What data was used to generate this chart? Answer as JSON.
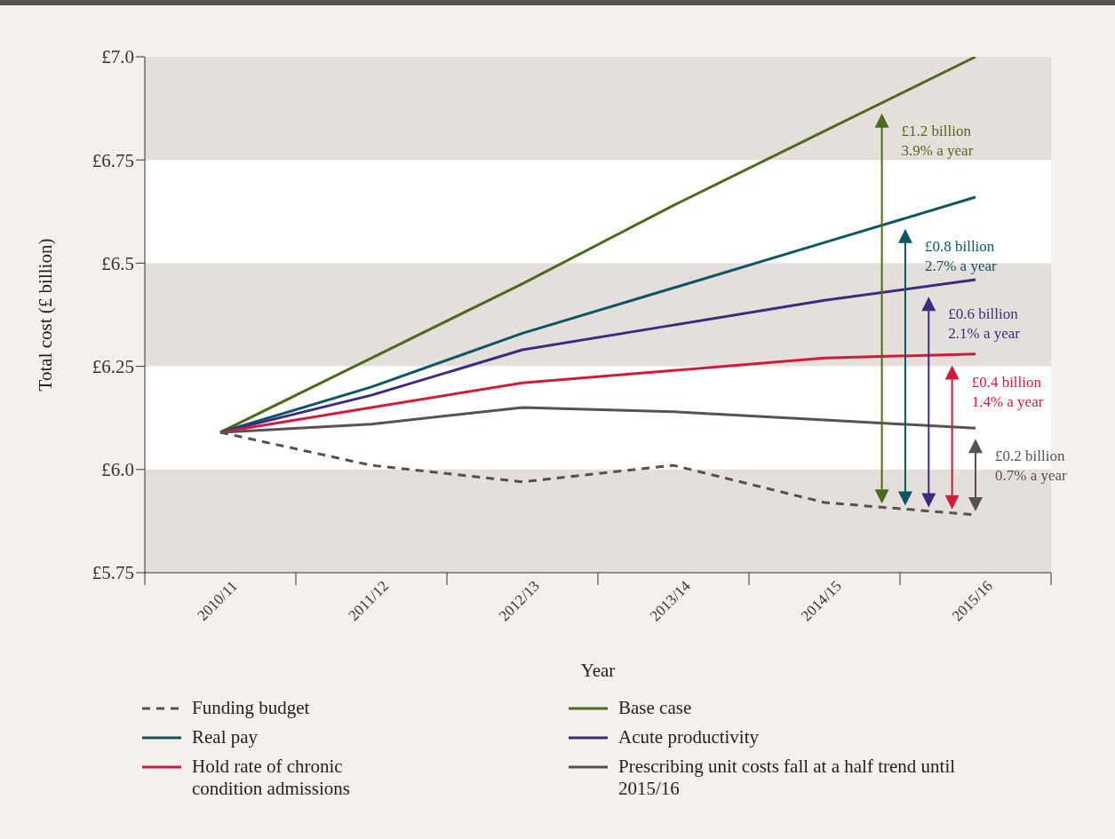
{
  "chart_data": {
    "type": "line",
    "xlabel": "Year",
    "ylabel": "Total cost (£ billion)",
    "categories": [
      "2010/11",
      "2011/12",
      "2012/13",
      "2013/14",
      "2014/15",
      "2015/16"
    ],
    "series": [
      {
        "name": "Funding budget",
        "color": "#58504f",
        "line_style": "dashed",
        "values": [
          6.09,
          6.01,
          5.97,
          6.01,
          5.92,
          5.89
        ]
      },
      {
        "name": "Base case",
        "color": "#4e6a1a",
        "values": [
          6.09,
          6.27,
          6.45,
          6.64,
          6.82,
          7.0
        ]
      },
      {
        "name": "Real pay",
        "color": "#0d5563",
        "values": [
          6.09,
          6.2,
          6.33,
          6.44,
          6.55,
          6.66
        ]
      },
      {
        "name": "Acute productivity",
        "color": "#3f2a7f",
        "values": [
          6.09,
          6.18,
          6.29,
          6.35,
          6.41,
          6.46
        ]
      },
      {
        "name": "Hold rate of chronic condition admissions",
        "color": "#d01c3b",
        "values": [
          6.09,
          6.15,
          6.21,
          6.24,
          6.27,
          6.28
        ]
      },
      {
        "name": "Prescribing unit costs fall at a half trend until 2015/16",
        "color": "#5a5150",
        "values": [
          6.09,
          6.11,
          6.15,
          6.14,
          6.12,
          6.1
        ]
      }
    ],
    "ylim": [
      5.75,
      7.0
    ],
    "yticks": [
      {
        "value": 5.75,
        "label": "£5.75"
      },
      {
        "value": 6.0,
        "label": "£6.0"
      },
      {
        "value": 6.25,
        "label": "£6.25"
      },
      {
        "value": 6.5,
        "label": "£6.5"
      },
      {
        "value": 6.75,
        "label": "£6.75"
      },
      {
        "value": 7.0,
        "label": "£7.0"
      }
    ],
    "bands": [
      {
        "axis": "y",
        "from": 5.75,
        "to": 6.0,
        "color": "#e4dfda"
      },
      {
        "axis": "y",
        "from": 6.25,
        "to": 6.5,
        "color": "#e4dfda"
      },
      {
        "axis": "y",
        "from": 6.75,
        "to": 7.0,
        "color": "#e4dfda"
      }
    ],
    "annotations": [
      "£1.2 billion\n3.9% a year",
      "£0.8 billion\n2.7% a year",
      "£0.6 billion\n2.1% a year",
      "£0.4 billion\n1.4% a year",
      "£0.2 billion\n0.7% a year"
    ],
    "grid": false,
    "legend": "bottom"
  }
}
